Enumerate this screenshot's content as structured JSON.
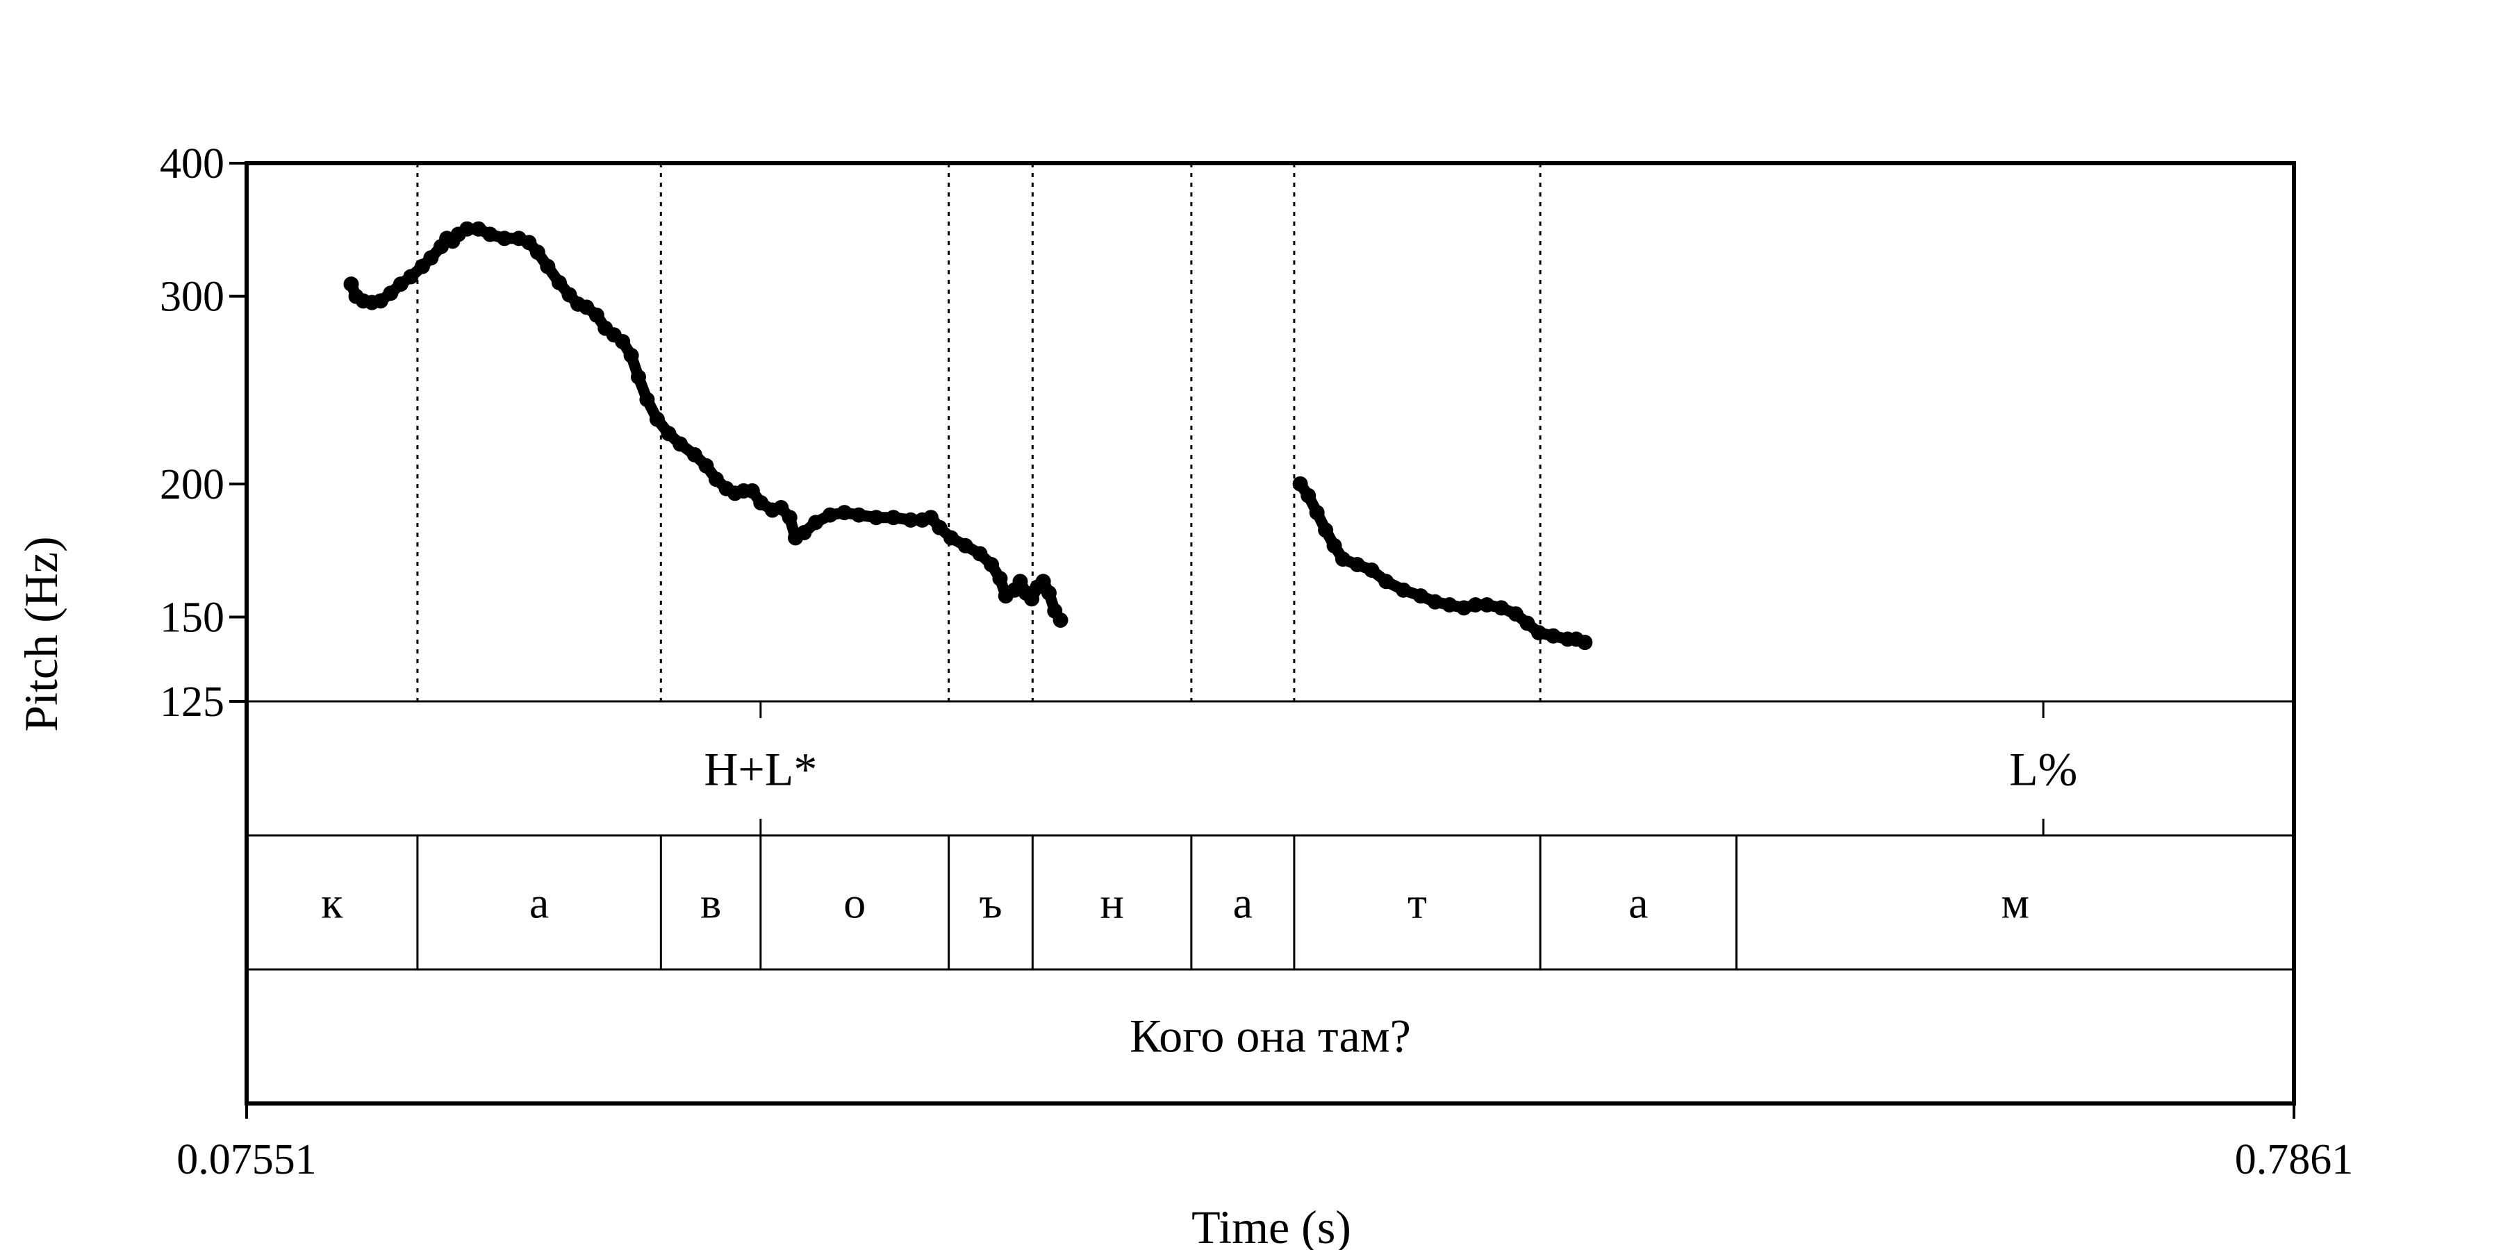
{
  "chart_data": {
    "type": "line",
    "subtype": "praat-pitch-track-with-textgrid",
    "xlabel": "Time (s)",
    "ylabel": "Pitch (Hz)",
    "xlim": [
      0.07551,
      0.7861
    ],
    "x_tick_labels": [
      "0.07551",
      "0.7861"
    ],
    "ylim": [
      125,
      400
    ],
    "y_scale": "log",
    "y_ticks": [
      125,
      150,
      200,
      300,
      400
    ],
    "y_tick_labels": [
      "125",
      "150",
      "200",
      "300",
      "400"
    ],
    "grid": false,
    "series": [
      {
        "marker": "filled-circle",
        "color": "#000000",
        "segments": [
          [
            [
              0.1118,
              308
            ],
            [
              0.1135,
              300
            ],
            [
              0.116,
              297
            ],
            [
              0.119,
              296
            ],
            [
              0.122,
              297
            ],
            [
              0.1255,
              302
            ],
            [
              0.129,
              308
            ],
            [
              0.1325,
              313
            ],
            [
              0.1365,
              320
            ],
            [
              0.1395,
              326
            ],
            [
              0.143,
              334
            ],
            [
              0.145,
              340
            ],
            [
              0.147,
              338
            ],
            [
              0.149,
              343
            ],
            [
              0.152,
              347
            ],
            [
              0.156,
              347
            ],
            [
              0.16,
              343
            ],
            [
              0.165,
              340
            ],
            [
              0.17,
              340
            ],
            [
              0.1735,
              337
            ],
            [
              0.1765,
              330
            ],
            [
              0.18,
              320
            ],
            [
              0.184,
              309
            ],
            [
              0.1875,
              301
            ],
            [
              0.1905,
              295
            ],
            [
              0.1935,
              293
            ],
            [
              0.197,
              288
            ],
            [
              0.2,
              280
            ],
            [
              0.203,
              276
            ],
            [
              0.206,
              272
            ],
            [
              0.209,
              264
            ],
            [
              0.2115,
              252
            ],
            [
              0.2145,
              240
            ],
            [
              0.218,
              230
            ],
            [
              0.222,
              223
            ],
            [
              0.226,
              218
            ],
            [
              0.231,
              213
            ],
            [
              0.235,
              208
            ],
            [
              0.2385,
              202
            ],
            [
              0.242,
              198
            ],
            [
              0.245,
              196
            ],
            [
              0.248,
              197
            ],
            [
              0.251,
              197
            ],
            [
              0.254,
              192
            ],
            [
              0.258,
              189
            ],
            [
              0.261,
              190
            ],
            [
              0.264,
              186
            ],
            [
              0.266,
              178
            ],
            [
              0.269,
              180
            ],
            [
              0.273,
              184
            ],
            [
              0.278,
              187
            ],
            [
              0.283,
              188
            ],
            [
              0.288,
              187
            ],
            [
              0.294,
              186
            ],
            [
              0.3,
              186
            ],
            [
              0.306,
              185
            ],
            [
              0.31,
              185
            ],
            [
              0.313,
              186
            ],
            [
              0.316,
              182
            ],
            [
              0.32,
              178
            ],
            [
              0.325,
              175
            ],
            [
              0.33,
              172
            ],
            [
              0.334,
              168
            ],
            [
              0.337,
              163
            ],
            [
              0.339,
              157
            ],
            [
              0.342,
              159
            ],
            [
              0.344,
              162
            ],
            [
              0.346,
              158
            ],
            [
              0.348,
              156
            ],
            [
              0.35,
              160
            ],
            [
              0.352,
              162
            ],
            [
              0.354,
              158
            ],
            [
              0.356,
              152
            ],
            [
              0.358,
              149
            ]
          ],
          [
            [
              0.4412,
              200
            ],
            [
              0.444,
              195
            ],
            [
              0.447,
              188
            ],
            [
              0.45,
              181
            ],
            [
              0.453,
              175
            ],
            [
              0.456,
              170
            ],
            [
              0.461,
              168
            ],
            [
              0.466,
              166
            ],
            [
              0.471,
              162
            ],
            [
              0.477,
              159
            ],
            [
              0.483,
              157
            ],
            [
              0.488,
              155
            ],
            [
              0.493,
              154
            ],
            [
              0.498,
              153
            ],
            [
              0.502,
              154
            ],
            [
              0.506,
              154
            ],
            [
              0.511,
              153
            ],
            [
              0.516,
              151
            ],
            [
              0.52,
              148
            ],
            [
              0.524,
              145
            ],
            [
              0.529,
              144
            ],
            [
              0.534,
              143
            ],
            [
              0.537,
              143
            ],
            [
              0.54,
              142
            ]
          ]
        ]
      }
    ],
    "interval_boundaries_s": [
      0.1348,
      0.2193,
      0.3192,
      0.3483,
      0.4034,
      0.4391,
      0.5245
    ],
    "tiers": [
      {
        "name": "tones",
        "type": "point",
        "points": [
          {
            "time": 0.2539,
            "label": "H+L*"
          },
          {
            "time": 0.6991,
            "label": "L%"
          }
        ]
      },
      {
        "name": "segments",
        "type": "interval",
        "intervals": [
          {
            "start": 0.07551,
            "end": 0.1348,
            "label": "к"
          },
          {
            "start": 0.1348,
            "end": 0.2193,
            "label": "а"
          },
          {
            "start": 0.2193,
            "end": 0.2539,
            "label": "в"
          },
          {
            "start": 0.2539,
            "end": 0.3192,
            "label": "о"
          },
          {
            "start": 0.3192,
            "end": 0.3483,
            "label": "ъ"
          },
          {
            "start": 0.3483,
            "end": 0.4034,
            "label": "н"
          },
          {
            "start": 0.4034,
            "end": 0.4391,
            "label": "а"
          },
          {
            "start": 0.4391,
            "end": 0.5245,
            "label": "т"
          },
          {
            "start": 0.5245,
            "end": 0.5926,
            "label": "а"
          },
          {
            "start": 0.5926,
            "end": 0.7861,
            "label": "м"
          }
        ]
      },
      {
        "name": "sentence",
        "type": "interval",
        "intervals": [
          {
            "start": 0.07551,
            "end": 0.7861,
            "label": "Кого она там?"
          }
        ]
      }
    ]
  }
}
